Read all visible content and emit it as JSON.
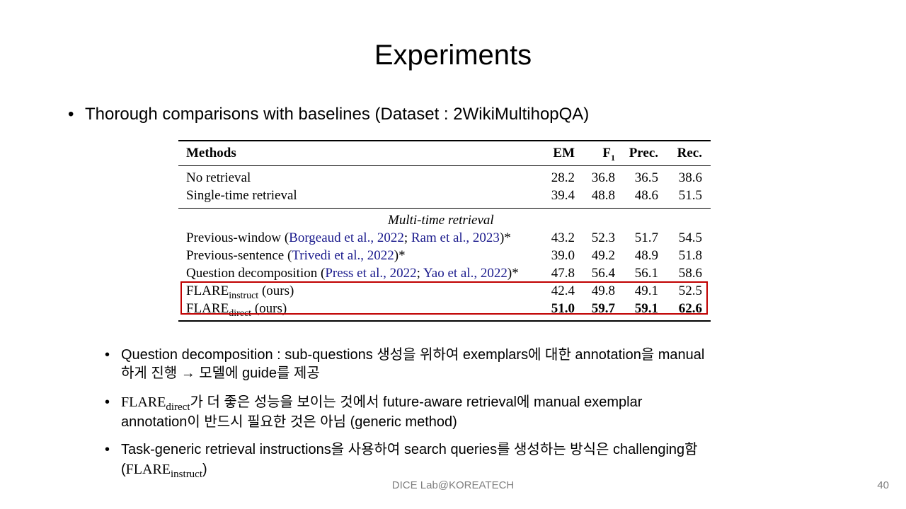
{
  "slide": {
    "title": "Experiments",
    "bullet": "Thorough comparisons with baselines (Dataset : 2WikiMultihopQA)",
    "bullet_marker": "•"
  },
  "table": {
    "headers": {
      "methods": "Methods",
      "em": "EM",
      "f1": "F",
      "f1_sub": "1",
      "prec": "Prec.",
      "rec": "Rec."
    },
    "section_label": "Multi-time retrieval",
    "rows": [
      {
        "name": "No retrieval",
        "em": "28.2",
        "f1": "36.8",
        "prec": "36.5",
        "rec": "38.6"
      },
      {
        "name": "Single-time retrieval",
        "em": "39.4",
        "f1": "48.8",
        "prec": "48.6",
        "rec": "51.5"
      },
      {
        "name": "Previous-window",
        "cite_open": " (",
        "cite1": "Borgeaud et al., 2022",
        "sep": "; ",
        "cite2": "Ram et al., 2023",
        "cite_close": ")*",
        "em": "43.2",
        "f1": "52.3",
        "prec": "51.7",
        "rec": "54.5"
      },
      {
        "name": "Previous-sentence",
        "cite_open": " (",
        "cite1": "Trivedi et al., 2022",
        "cite_close": ")*",
        "em": "39.0",
        "f1": "49.2",
        "prec": "48.9",
        "rec": "51.8"
      },
      {
        "name": "Question decomposition",
        "cite_open": " (",
        "cite1": "Press et al., 2022",
        "sep": "; ",
        "cite2": "Yao et al., 2022",
        "cite_close": ")*",
        "em": "47.8",
        "f1": "56.4",
        "prec": "56.1",
        "rec": "58.6"
      },
      {
        "name": "FLARE",
        "sub": "instruct",
        "suffix": " (ours)",
        "em": "42.4",
        "f1": "49.8",
        "prec": "49.1",
        "rec": "52.5"
      },
      {
        "name": "FLARE",
        "sub": "direct",
        "suffix": " (ours)",
        "em": "51.0",
        "f1": "59.7",
        "prec": "59.1",
        "rec": "62.6"
      }
    ],
    "highlight_color": "#c00000"
  },
  "notes": {
    "marker": "•",
    "n1_line1": "Question decomposition : sub-questions 생성을 위하여 exemplars에 대한 annotation을 manual",
    "n1_line2": "하게 진행 → 모델에 guide를 제공",
    "n2_flare": "FLARE",
    "n2_sub": "direct",
    "n2_line1_rest": "가 더 좋은 성능을 보이는 것에서 future-aware retrieval에 manual exemplar",
    "n2_line2": "annotation이 반드시 필요한 것은 아님 (generic method)",
    "n3_line1": "Task-generic retrieval instructions을 사용하여 search queries를 생성하는 방식은 challenging함",
    "n3_open": "(",
    "n3_flare": "FLARE",
    "n3_sub": "instruct",
    "n3_close": ")"
  },
  "footer": {
    "lab": "DICE Lab@KOREATECH",
    "page": "40"
  }
}
